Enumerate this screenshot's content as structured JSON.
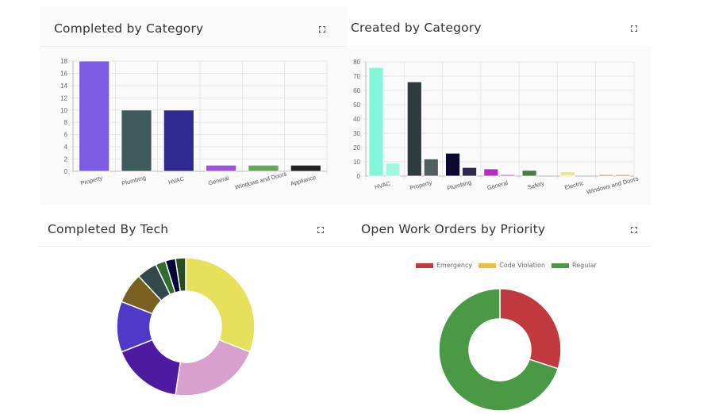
{
  "panels": {
    "completed_by_category": {
      "title": "Completed by Category",
      "expand_icon": "expand-icon"
    },
    "created_by_category": {
      "title": "Created by Category",
      "expand_icon": "expand-icon"
    },
    "completed_by_tech": {
      "title": "Completed By Tech",
      "expand_icon": "expand-icon"
    },
    "open_by_priority": {
      "title": "Open Work Orders by Priority",
      "expand_icon": "expand-icon"
    }
  },
  "chart_data": [
    {
      "type": "bar",
      "categories": [
        "Property",
        "Plumbing",
        "HVAC",
        "General",
        "Windows and Doors",
        "Appliance"
      ],
      "values": [
        18,
        10,
        10,
        1,
        1,
        1
      ],
      "colors": [
        "#7c5ce0",
        "#3f5a5a",
        "#302a90",
        "#9b55d6",
        "#6aa560",
        "#222222"
      ],
      "ylim": [
        0,
        18
      ],
      "yticks": [
        0,
        2,
        4,
        6,
        8,
        10,
        12,
        14,
        16,
        18
      ],
      "grid": true
    },
    {
      "type": "bar",
      "categories": [
        "HVAC",
        "Property",
        "Plumbing",
        "General",
        "Safety",
        "Electric",
        "Windows and Doors"
      ],
      "series": [
        {
          "values": [
            76,
            66,
            16,
            5,
            4,
            3,
            1
          ],
          "colors": [
            "#84f5d9",
            "#2d3b3d",
            "#0a0a30",
            "#b030c0",
            "#4a7a45",
            "#efe88a",
            "#c08a70"
          ]
        },
        {
          "values": [
            9,
            12,
            6,
            1,
            0,
            0,
            1
          ],
          "colors": [
            "#9ef7e2",
            "#536060",
            "#2c2a50",
            "#c050d0",
            "#4a7a45",
            "#efe88a",
            "#c08a70"
          ]
        }
      ],
      "ylim": [
        0,
        80
      ],
      "yticks": [
        0,
        10,
        20,
        30,
        40,
        50,
        60,
        70,
        80
      ],
      "grid": true
    },
    {
      "type": "pie",
      "donut": true,
      "values": [
        13,
        9,
        7,
        5,
        3,
        2,
        1,
        1,
        1
      ],
      "colors": [
        "#e6e05a",
        "#d8a0cc",
        "#4e1aa0",
        "#5038c8",
        "#7a6020",
        "#334848",
        "#2f6e2f",
        "#05053a",
        "#2a4a20"
      ]
    },
    {
      "type": "pie",
      "donut": true,
      "categories": [
        "Emergency",
        "Code Violation",
        "Regular"
      ],
      "values": [
        30,
        0,
        70
      ],
      "colors": [
        "#c0393f",
        "#efbf3a",
        "#4a9a45"
      ],
      "legend": "top"
    }
  ]
}
